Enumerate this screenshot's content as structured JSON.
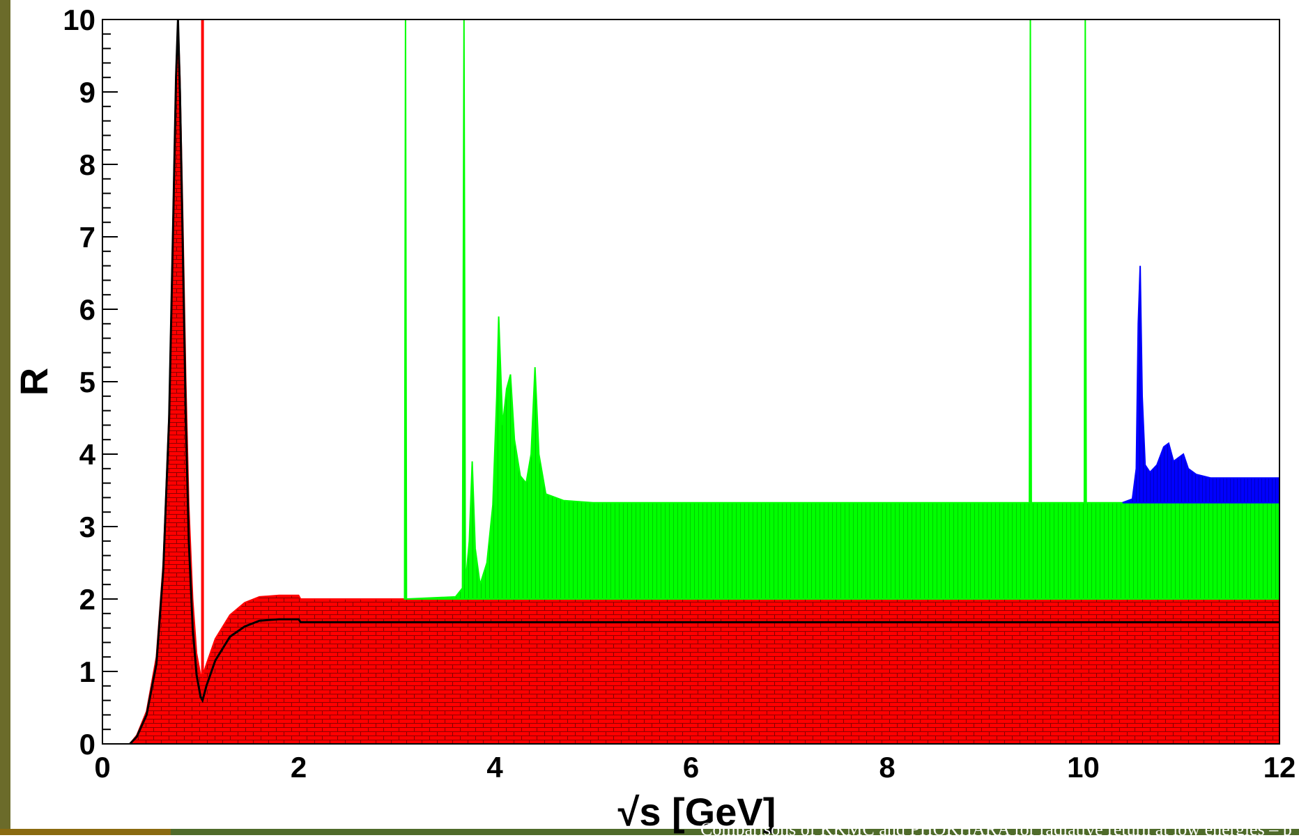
{
  "chart_data": {
    "type": "area",
    "title": "",
    "xlabel": "√s  [GeV]",
    "ylabel": "R",
    "xlim": [
      0,
      12
    ],
    "ylim": [
      0,
      10
    ],
    "x_ticks": [
      "0",
      "2",
      "4",
      "6",
      "8",
      "10",
      "12"
    ],
    "y_ticks": [
      "0",
      "1",
      "2",
      "3",
      "4",
      "5",
      "6",
      "7",
      "8",
      "9",
      "10"
    ],
    "grid": false,
    "legend": "none",
    "series": [
      {
        "color": "#ff0000",
        "hatch": "brick",
        "points": [
          [
            0,
            0
          ],
          [
            0.28,
            0
          ],
          [
            0.35,
            0.12
          ],
          [
            0.45,
            0.45
          ],
          [
            0.55,
            1.2
          ],
          [
            0.62,
            2.5
          ],
          [
            0.68,
            4.6
          ],
          [
            0.72,
            7.2
          ],
          [
            0.75,
            9.3
          ],
          [
            0.77,
            10
          ],
          [
            0.79,
            9.2
          ],
          [
            0.82,
            7.2
          ],
          [
            0.85,
            5.0
          ],
          [
            0.88,
            3.3
          ],
          [
            0.92,
            2.0
          ],
          [
            0.96,
            1.25
          ],
          [
            1.0,
            0.95
          ],
          [
            1.02,
            0.93
          ],
          [
            1.06,
            1.1
          ],
          [
            1.15,
            1.45
          ],
          [
            1.3,
            1.78
          ],
          [
            1.45,
            1.95
          ],
          [
            1.6,
            2.03
          ],
          [
            1.8,
            2.05
          ],
          [
            2.0,
            2.05
          ],
          [
            2.02,
            2.0
          ],
          [
            12,
            2.0
          ]
        ]
      },
      {
        "color": "#00ff00",
        "hatch": "vertical",
        "points": [
          [
            3.08,
            2.0
          ],
          [
            3.09,
            10
          ],
          [
            3.1,
            2.0
          ],
          [
            3.6,
            2.03
          ],
          [
            3.67,
            2.15
          ],
          [
            3.686,
            10
          ],
          [
            3.7,
            2.2
          ],
          [
            3.74,
            2.8
          ],
          [
            3.77,
            3.9
          ],
          [
            3.8,
            2.7
          ],
          [
            3.85,
            2.2
          ],
          [
            3.92,
            2.5
          ],
          [
            3.98,
            3.3
          ],
          [
            4.02,
            4.8
          ],
          [
            4.04,
            5.9
          ],
          [
            4.08,
            4.4
          ],
          [
            4.12,
            4.9
          ],
          [
            4.16,
            5.1
          ],
          [
            4.2,
            4.2
          ],
          [
            4.26,
            3.7
          ],
          [
            4.32,
            3.6
          ],
          [
            4.37,
            4.0
          ],
          [
            4.41,
            5.2
          ],
          [
            4.45,
            4.0
          ],
          [
            4.52,
            3.45
          ],
          [
            4.7,
            3.36
          ],
          [
            5.0,
            3.33
          ],
          [
            9.45,
            3.33
          ],
          [
            9.46,
            10
          ],
          [
            9.47,
            3.33
          ],
          [
            10.01,
            3.33
          ],
          [
            10.02,
            10
          ],
          [
            10.03,
            3.33
          ],
          [
            12,
            3.33
          ]
        ]
      },
      {
        "color": "#0000ff",
        "hatch": "vertical",
        "points": [
          [
            10.4,
            3.33
          ],
          [
            10.5,
            3.38
          ],
          [
            10.54,
            3.8
          ],
          [
            10.56,
            5.8
          ],
          [
            10.58,
            6.6
          ],
          [
            10.6,
            4.8
          ],
          [
            10.63,
            3.85
          ],
          [
            10.68,
            3.75
          ],
          [
            10.75,
            3.85
          ],
          [
            10.82,
            4.1
          ],
          [
            10.87,
            4.15
          ],
          [
            10.92,
            3.9
          ],
          [
            10.97,
            3.95
          ],
          [
            11.02,
            4.0
          ],
          [
            11.07,
            3.8
          ],
          [
            11.15,
            3.72
          ],
          [
            11.3,
            3.67
          ],
          [
            12,
            3.67
          ]
        ]
      },
      {
        "color": "#000000",
        "style": "line",
        "points": [
          [
            0.28,
            0
          ],
          [
            0.35,
            0.1
          ],
          [
            0.45,
            0.4
          ],
          [
            0.55,
            1.1
          ],
          [
            0.62,
            2.4
          ],
          [
            0.68,
            4.5
          ],
          [
            0.72,
            7.1
          ],
          [
            0.75,
            9.2
          ],
          [
            0.77,
            10
          ],
          [
            0.79,
            9.0
          ],
          [
            0.82,
            6.8
          ],
          [
            0.85,
            4.5
          ],
          [
            0.88,
            2.8
          ],
          [
            0.92,
            1.6
          ],
          [
            0.96,
            0.95
          ],
          [
            1.0,
            0.65
          ],
          [
            1.02,
            0.6
          ],
          [
            1.06,
            0.8
          ],
          [
            1.15,
            1.15
          ],
          [
            1.3,
            1.48
          ],
          [
            1.45,
            1.62
          ],
          [
            1.6,
            1.7
          ],
          [
            1.8,
            1.72
          ],
          [
            2.0,
            1.72
          ],
          [
            2.02,
            1.68
          ],
          [
            12,
            1.68
          ]
        ]
      },
      {
        "color": "#ff0000",
        "style": "spike",
        "points": [
          [
            1.02,
            0.93
          ],
          [
            1.02,
            10
          ]
        ]
      }
    ]
  },
  "footer": {
    "text": "Comparisons of KKMC and PHOKHARA for radiative return at low energies – p"
  },
  "colors": {
    "left_bar": "#6b6b2a",
    "bottom_bar_a": "#8a6a10",
    "bottom_bar_b": "#4f6b2a"
  }
}
